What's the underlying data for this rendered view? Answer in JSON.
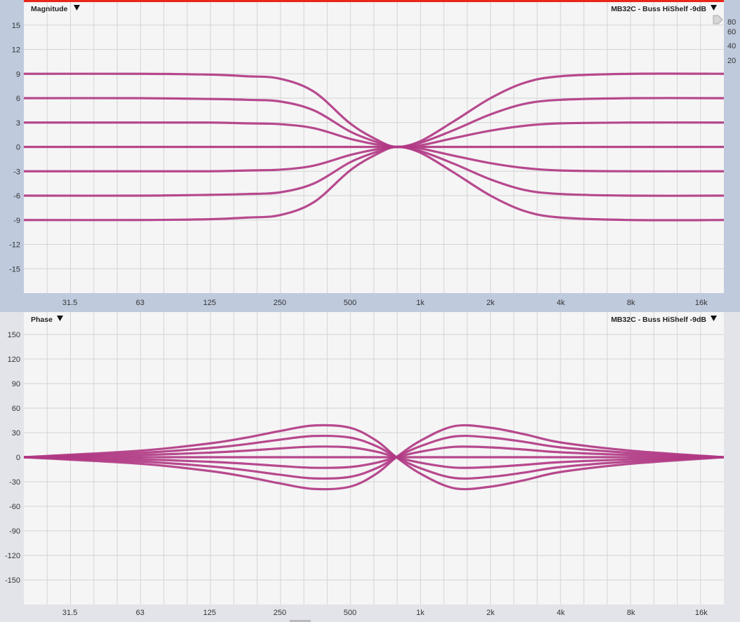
{
  "colors": {
    "trace": "#b13a84",
    "top_axis_bg": "#bfcadd",
    "bottom_axis_bg": "#e3e4ea",
    "plot_bg": "#f5f5f5",
    "grid": "#d4d4d4",
    "limit_line": "#e8261a"
  },
  "icons": {
    "menu": "triangle-down-icon",
    "scale_handle": "triangle-right-icon"
  },
  "chart_data": [
    {
      "type": "line",
      "title": "Magnitude",
      "trace_label": "MB32C - Buss HiShelf -9dB",
      "x_scale": "log",
      "xlim": [
        20,
        20000
      ],
      "ylim": [
        -18,
        18
      ],
      "grid": true,
      "x_ticks": [
        31.5,
        63,
        125,
        250,
        500,
        1000,
        2000,
        4000,
        8000,
        16000
      ],
      "x_tick_labels": [
        "31.5",
        "63",
        "125",
        "250",
        "500",
        "1k",
        "2k",
        "4k",
        "8k",
        "16k"
      ],
      "y_ticks": [
        15,
        12,
        9,
        6,
        3,
        0,
        -3,
        -6,
        -9,
        -12,
        -15
      ],
      "y_tick_labels": [
        "15",
        "12",
        "9",
        "6",
        "3",
        "0",
        "-3",
        "-6",
        "-9",
        "-12",
        "-15"
      ],
      "right_axis_tick_labels": [
        "80",
        "60",
        "40",
        "20"
      ],
      "x": [
        20,
        63,
        125,
        180,
        250,
        350,
        500,
        650,
        790,
        1000,
        1400,
        2000,
        2800,
        4000,
        8000,
        20000
      ],
      "series": [
        {
          "values": [
            9,
            9,
            8.9,
            8.7,
            8.4,
            6.8,
            2.9,
            0.9,
            0,
            0.7,
            3.2,
            6,
            7.9,
            8.7,
            9,
            9
          ]
        },
        {
          "values": [
            6,
            6,
            5.9,
            5.8,
            5.6,
            4.5,
            1.9,
            0.6,
            0,
            0.5,
            2.1,
            4,
            5.3,
            5.8,
            6,
            6
          ]
        },
        {
          "values": [
            3,
            3,
            3,
            2.9,
            2.8,
            2.3,
            1,
            0.3,
            0,
            0.2,
            1.1,
            2,
            2.6,
            2.9,
            3,
            3
          ]
        },
        {
          "values": [
            0,
            0,
            0,
            0,
            0,
            0,
            0,
            0,
            0,
            0,
            0,
            0,
            0,
            0,
            0,
            0
          ]
        },
        {
          "values": [
            -3,
            -3,
            -3,
            -2.9,
            -2.8,
            -2.3,
            -1,
            -0.3,
            0,
            -0.2,
            -1.1,
            -2,
            -2.6,
            -2.9,
            -3,
            -3
          ]
        },
        {
          "values": [
            -6,
            -6,
            -5.9,
            -5.8,
            -5.6,
            -4.5,
            -1.9,
            -0.6,
            0,
            -0.5,
            -2.1,
            -4,
            -5.3,
            -5.8,
            -6,
            -6
          ]
        },
        {
          "values": [
            -9,
            -9,
            -8.9,
            -8.7,
            -8.4,
            -6.8,
            -2.9,
            -0.9,
            0,
            -0.7,
            -3.2,
            -6,
            -7.9,
            -8.7,
            -9,
            -9
          ]
        }
      ]
    },
    {
      "type": "line",
      "title": "Phase",
      "trace_label": "MB32C - Buss HiShelf -9dB",
      "x_scale": "log",
      "xlim": [
        20,
        20000
      ],
      "ylim": [
        -180,
        180
      ],
      "grid": true,
      "x_ticks": [
        31.5,
        63,
        125,
        250,
        500,
        1000,
        2000,
        4000,
        8000,
        16000
      ],
      "x_tick_labels": [
        "31.5",
        "63",
        "125",
        "250",
        "500",
        "1k",
        "2k",
        "4k",
        "8k",
        "16k"
      ],
      "y_ticks": [
        150,
        120,
        90,
        60,
        30,
        0,
        -30,
        -60,
        -90,
        -120,
        -150
      ],
      "y_tick_labels": [
        "150",
        "120",
        "90",
        "60",
        "30",
        "0",
        "-30",
        "-60",
        "-90",
        "-120",
        "-150"
      ],
      "x": [
        20,
        63,
        125,
        180,
        250,
        350,
        500,
        650,
        790,
        1000,
        1400,
        2000,
        2800,
        4000,
        8000,
        20000
      ],
      "series": [
        {
          "values": [
            0,
            -8,
            -16.8,
            -24,
            -32,
            -38.8,
            -36,
            -20,
            0,
            20,
            38,
            36,
            28,
            18,
            8,
            0
          ]
        },
        {
          "values": [
            0,
            -5.3,
            -11.2,
            -16,
            -21.4,
            -25.9,
            -24,
            -13.4,
            0,
            13.4,
            25.4,
            24,
            18.7,
            12,
            5.3,
            0
          ]
        },
        {
          "values": [
            0,
            -2.7,
            -5.6,
            -8,
            -10.7,
            -12.9,
            -12,
            -6.7,
            0,
            6.7,
            12.7,
            12,
            9.3,
            6,
            2.7,
            0
          ]
        },
        {
          "values": [
            0,
            0,
            0,
            0,
            0,
            0,
            0,
            0,
            0,
            0,
            0,
            0,
            0,
            0,
            0,
            0
          ]
        },
        {
          "values": [
            0,
            2.7,
            5.6,
            8,
            10.7,
            12.9,
            12,
            6.7,
            0,
            -6.7,
            -12.7,
            -12,
            -9.3,
            -6,
            -2.7,
            0
          ]
        },
        {
          "values": [
            0,
            5.3,
            11.2,
            16,
            21.4,
            25.9,
            24,
            13.4,
            0,
            -13.4,
            -25.4,
            -24,
            -18.7,
            -12,
            -5.3,
            0
          ]
        },
        {
          "values": [
            0,
            8,
            16.8,
            24,
            32,
            38.8,
            36,
            20,
            0,
            -20,
            -38,
            -36,
            -28,
            -18,
            -8,
            0
          ]
        }
      ]
    }
  ]
}
